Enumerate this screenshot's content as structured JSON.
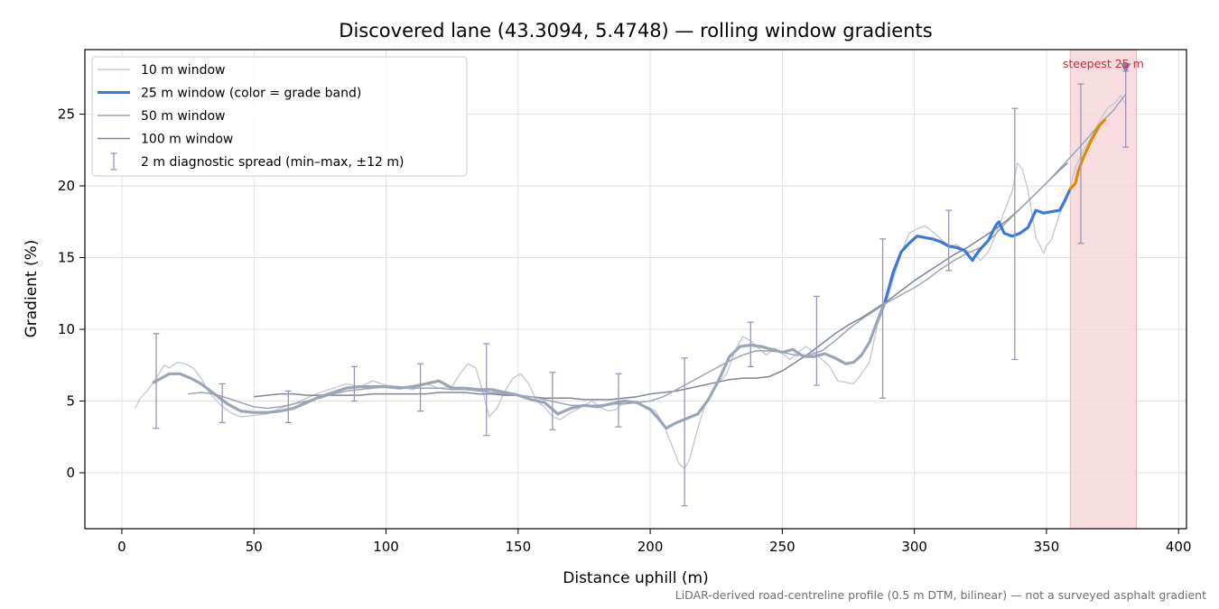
{
  "chart_data": {
    "type": "line",
    "title": "Discovered lane (43.3094, 5.4748) — rolling window gradients",
    "xlabel": "Distance uphill (m)",
    "ylabel": "Gradient (%)",
    "xlim": [
      -14,
      403
    ],
    "ylim": [
      -3.9,
      29.5
    ],
    "xticks": [
      0,
      50,
      100,
      150,
      200,
      250,
      300,
      350,
      400
    ],
    "yticks": [
      0,
      5,
      10,
      15,
      20,
      25
    ],
    "grid": true,
    "legend_position": "top-left",
    "footnote": "LiDAR-derived road-centreline profile (0.5 m DTM, bilinear) — not a surveyed asphalt gradient",
    "highlight": {
      "label": "steepest 25 m",
      "x_range": [
        359,
        384
      ],
      "peak_x": 380,
      "peak_y": 28.2,
      "color": "#f5d5d8"
    },
    "series": [
      {
        "name": "10 m window",
        "color": "#c5c9d4",
        "width": 1.4,
        "x": [
          5,
          7,
          10,
          13,
          16,
          18,
          21,
          24,
          27,
          30,
          33,
          37,
          41,
          45,
          50,
          55,
          60,
          65,
          70,
          75,
          80,
          85,
          90,
          95,
          100,
          105,
          110,
          115,
          120,
          125,
          128,
          131,
          134,
          137,
          139,
          142,
          145,
          148,
          151,
          154,
          157,
          160,
          163,
          166,
          169,
          172,
          175,
          178,
          181,
          184,
          187,
          190,
          193,
          196,
          199,
          202,
          205,
          208,
          211,
          213,
          215,
          218,
          221,
          224,
          226,
          229,
          232,
          235,
          238,
          241,
          244,
          247,
          250,
          253,
          256,
          259,
          262,
          265,
          268,
          271,
          274,
          277,
          280,
          283,
          286,
          289,
          292,
          295,
          298,
          301,
          304,
          307,
          310,
          313,
          316,
          319,
          322,
          325,
          328,
          331,
          334,
          337,
          339,
          341,
          343,
          346,
          349,
          350,
          352,
          355,
          358,
          361,
          364,
          367,
          370,
          373,
          376,
          378,
          380
        ],
        "y": [
          4.5,
          5.2,
          5.8,
          6.6,
          7.5,
          7.3,
          7.7,
          7.6,
          7.3,
          6.6,
          5.6,
          4.8,
          4.2,
          3.9,
          4.0,
          4.1,
          4.5,
          4.8,
          5.2,
          5.6,
          5.9,
          6.2,
          6.0,
          6.4,
          6.1,
          6.0,
          5.8,
          6.2,
          5.9,
          6.0,
          6.9,
          7.6,
          7.3,
          5.4,
          3.9,
          4.5,
          5.7,
          6.6,
          6.9,
          6.2,
          5.0,
          4.6,
          3.9,
          3.7,
          4.1,
          4.4,
          4.7,
          5.0,
          4.6,
          4.3,
          4.4,
          4.9,
          5.0,
          4.8,
          4.6,
          4.3,
          3.4,
          2.0,
          0.6,
          0.3,
          1.0,
          3.1,
          4.9,
          5.8,
          6.3,
          6.9,
          8.5,
          9.5,
          9.2,
          8.7,
          8.2,
          8.7,
          8.3,
          7.9,
          8.4,
          8.8,
          8.4,
          7.9,
          7.4,
          6.4,
          6.3,
          6.2,
          6.9,
          7.7,
          10.3,
          11.7,
          13.5,
          15.3,
          16.7,
          17.0,
          17.2,
          16.8,
          16.3,
          15.8,
          15.9,
          15.5,
          15.4,
          14.8,
          15.4,
          16.7,
          18.2,
          19.6,
          21.6,
          21.1,
          19.7,
          16.4,
          15.3,
          15.8,
          16.3,
          18.1,
          19.2,
          21.3,
          22.5,
          23.4,
          24.5,
          25.4,
          25.8,
          26.3,
          25.7
        ]
      },
      {
        "name": "25 m window (color = grade band)",
        "color": "#9aa6b6",
        "width": 3.2,
        "band_colors": {
          "below_20": "#3b78d8",
          "above_20": "#e08a00"
        },
        "x": [
          12,
          15,
          18,
          22,
          26,
          30,
          35,
          40,
          45,
          50,
          55,
          60,
          65,
          70,
          75,
          80,
          85,
          90,
          95,
          100,
          105,
          110,
          115,
          120,
          125,
          130,
          135,
          140,
          145,
          150,
          155,
          160,
          165,
          170,
          175,
          180,
          185,
          190,
          195,
          200,
          203,
          206,
          210,
          214,
          218,
          222,
          226,
          230,
          234,
          238,
          242,
          246,
          250,
          254,
          258,
          262,
          266,
          270,
          274,
          277,
          280,
          283,
          286,
          289,
          292,
          295,
          298,
          301,
          304,
          307,
          310,
          313,
          316,
          319,
          322,
          323,
          325,
          328,
          331,
          332,
          334,
          337,
          340,
          343,
          346,
          349,
          352,
          355,
          357,
          359,
          361,
          362,
          364,
          367,
          370,
          372
        ],
        "y": [
          6.3,
          6.6,
          6.9,
          6.9,
          6.6,
          6.2,
          5.5,
          4.8,
          4.3,
          4.2,
          4.2,
          4.3,
          4.5,
          4.9,
          5.3,
          5.6,
          5.9,
          6.0,
          6.0,
          6.0,
          5.9,
          6.0,
          6.2,
          6.4,
          5.9,
          5.9,
          5.8,
          5.8,
          5.6,
          5.4,
          5.1,
          4.9,
          4.1,
          4.5,
          4.7,
          4.6,
          4.8,
          5.0,
          4.9,
          4.4,
          3.8,
          3.1,
          3.5,
          3.8,
          4.1,
          5.1,
          6.5,
          8.1,
          8.8,
          8.9,
          8.8,
          8.6,
          8.4,
          8.6,
          8.1,
          8.1,
          8.3,
          8.0,
          7.6,
          7.7,
          8.2,
          9.1,
          10.6,
          12.0,
          14.0,
          15.4,
          16.0,
          16.5,
          16.4,
          16.3,
          16.1,
          15.8,
          15.7,
          15.5,
          14.8,
          15.1,
          15.6,
          16.2,
          17.3,
          17.5,
          16.7,
          16.5,
          16.7,
          17.1,
          18.3,
          18.1,
          18.2,
          18.3,
          19.0,
          19.8,
          20.2,
          21.0,
          22.0,
          23.2,
          24.2,
          24.6
        ]
      },
      {
        "name": "50 m window",
        "color": "#9ea5b3",
        "width": 1.5,
        "x": [
          25,
          30,
          35,
          40,
          45,
          50,
          55,
          60,
          65,
          70,
          75,
          80,
          85,
          90,
          95,
          100,
          105,
          110,
          115,
          120,
          125,
          130,
          135,
          140,
          145,
          150,
          155,
          160,
          165,
          170,
          175,
          180,
          185,
          190,
          195,
          200,
          205,
          210,
          215,
          220,
          225,
          230,
          235,
          240,
          245,
          250,
          255,
          260,
          265,
          270,
          275,
          280,
          285,
          290,
          295,
          300,
          305,
          310,
          315,
          320,
          325,
          330,
          335,
          340,
          345,
          350,
          355,
          360,
          365,
          370,
          375,
          380
        ],
        "y": [
          5.5,
          5.6,
          5.5,
          5.2,
          4.9,
          4.6,
          4.5,
          4.6,
          4.8,
          5.0,
          5.2,
          5.5,
          5.7,
          5.8,
          5.9,
          6.0,
          6.0,
          5.9,
          5.9,
          5.9,
          5.8,
          5.8,
          5.7,
          5.6,
          5.5,
          5.4,
          5.3,
          5.1,
          4.9,
          4.7,
          4.7,
          4.7,
          4.8,
          4.8,
          4.9,
          5.0,
          5.3,
          5.8,
          6.3,
          6.8,
          7.3,
          7.8,
          8.2,
          8.5,
          8.5,
          8.4,
          8.2,
          8.2,
          8.5,
          9.2,
          10.0,
          10.7,
          11.3,
          11.9,
          12.4,
          12.9,
          13.5,
          14.2,
          14.8,
          15.3,
          15.7,
          16.5,
          17.5,
          18.4,
          19.3,
          20.2,
          21.2,
          22.2,
          23.2,
          24.3,
          25.2,
          26.4
        ]
      },
      {
        "name": "100 m window",
        "color": "#7e8597",
        "width": 1.5,
        "x": [
          50,
          55,
          60,
          65,
          70,
          75,
          80,
          85,
          90,
          95,
          100,
          105,
          110,
          115,
          120,
          125,
          130,
          135,
          140,
          145,
          150,
          155,
          160,
          165,
          170,
          175,
          180,
          185,
          190,
          195,
          200,
          205,
          210,
          215,
          220,
          225,
          230,
          235,
          240,
          245,
          250,
          255,
          260,
          265,
          270,
          275,
          280,
          285,
          290,
          295,
          300,
          305,
          310,
          315,
          320,
          325,
          330,
          335,
          340,
          345,
          350,
          355,
          358
        ],
        "y": [
          5.3,
          5.4,
          5.5,
          5.5,
          5.4,
          5.4,
          5.4,
          5.4,
          5.4,
          5.5,
          5.5,
          5.5,
          5.5,
          5.5,
          5.6,
          5.6,
          5.6,
          5.5,
          5.5,
          5.4,
          5.4,
          5.3,
          5.2,
          5.2,
          5.2,
          5.1,
          5.1,
          5.1,
          5.2,
          5.3,
          5.5,
          5.6,
          5.7,
          5.9,
          6.1,
          6.3,
          6.5,
          6.6,
          6.6,
          6.7,
          7.1,
          7.7,
          8.3,
          9.0,
          9.7,
          10.3,
          10.8,
          11.4,
          12.0,
          12.7,
          13.4,
          14.0,
          14.6,
          15.2,
          15.7,
          16.3,
          16.9,
          17.6,
          18.4,
          19.3,
          20.2,
          21.1,
          21.6
        ]
      },
      {
        "name": "2 m diagnostic spread (min–max, ±12 m)",
        "color": "#9a94b8",
        "width": 1.3,
        "type": "errorbar",
        "x": [
          13,
          38,
          63,
          88,
          113,
          138,
          163,
          188,
          213,
          238,
          263,
          288,
          313,
          338,
          363,
          380
        ],
        "ymin": [
          3.1,
          3.5,
          3.5,
          5.0,
          4.3,
          2.6,
          3.0,
          3.2,
          -2.3,
          7.4,
          6.1,
          5.2,
          14.1,
          7.9,
          16.0,
          22.7
        ],
        "ymax": [
          9.7,
          6.2,
          5.7,
          7.4,
          7.6,
          9.0,
          7.0,
          6.9,
          8.0,
          10.5,
          12.3,
          16.3,
          18.3,
          25.4,
          27.1,
          28.0
        ]
      }
    ]
  }
}
